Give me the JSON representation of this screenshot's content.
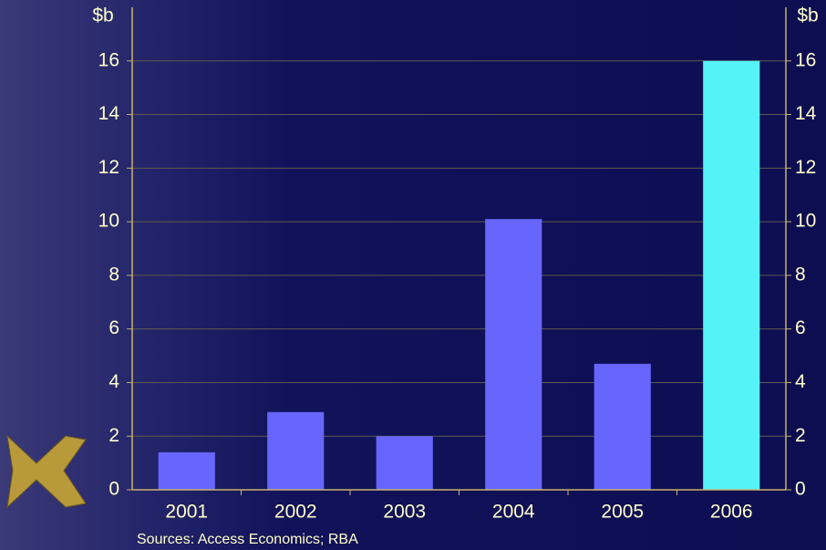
{
  "chart_data": {
    "type": "bar",
    "categories": [
      "2001",
      "2002",
      "2003",
      "2004",
      "2005",
      "2006"
    ],
    "values": [
      1.4,
      2.9,
      2.0,
      10.1,
      4.7,
      16.0
    ],
    "colors": [
      "#6666ff",
      "#6666ff",
      "#6666ff",
      "#6666ff",
      "#6666ff",
      "#55f2f8"
    ],
    "ylim": [
      0,
      18
    ],
    "yticks": [
      0,
      2,
      4,
      6,
      8,
      10,
      12,
      14,
      16
    ],
    "y2lim": [
      0,
      18
    ],
    "y2ticks": [
      0,
      2,
      4,
      6,
      8,
      10,
      12,
      14,
      16
    ],
    "y_label": "$b",
    "y2_label": "$b",
    "source": "Sources: Access Economics; RBA",
    "grid": true
  }
}
